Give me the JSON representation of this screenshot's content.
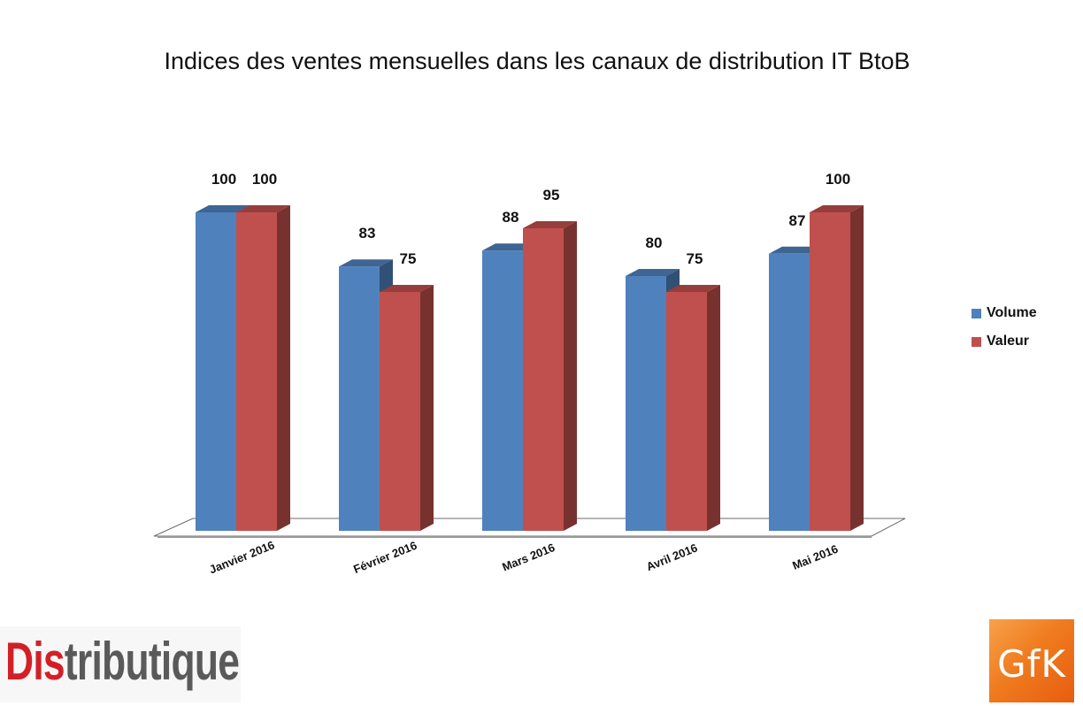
{
  "chart_data": {
    "type": "bar",
    "title": "Indices des ventes mensuelles dans les canaux de distribution IT BtoB",
    "categories": [
      "Janvier 2016",
      "Février 2016",
      "Mars 2016",
      "Avril 2016",
      "Mai 2016"
    ],
    "series": [
      {
        "name": "Volume",
        "values": [
          100,
          83,
          88,
          80,
          87
        ],
        "color": "#4f81bd"
      },
      {
        "name": "Valeur",
        "values": [
          100,
          75,
          95,
          75,
          100
        ],
        "color": "#c0504d"
      }
    ],
    "xlabel": "",
    "ylabel": "",
    "ylim": [
      0,
      100
    ],
    "grid": false,
    "legend": "right",
    "style": "3d-clustered-column"
  },
  "logos": {
    "distributique": {
      "text": "Distributique",
      "accent_color": "#d32027",
      "text_color": "#5a5a5a"
    },
    "gfk": {
      "text": "GfK",
      "color": "#f07b1f"
    }
  }
}
